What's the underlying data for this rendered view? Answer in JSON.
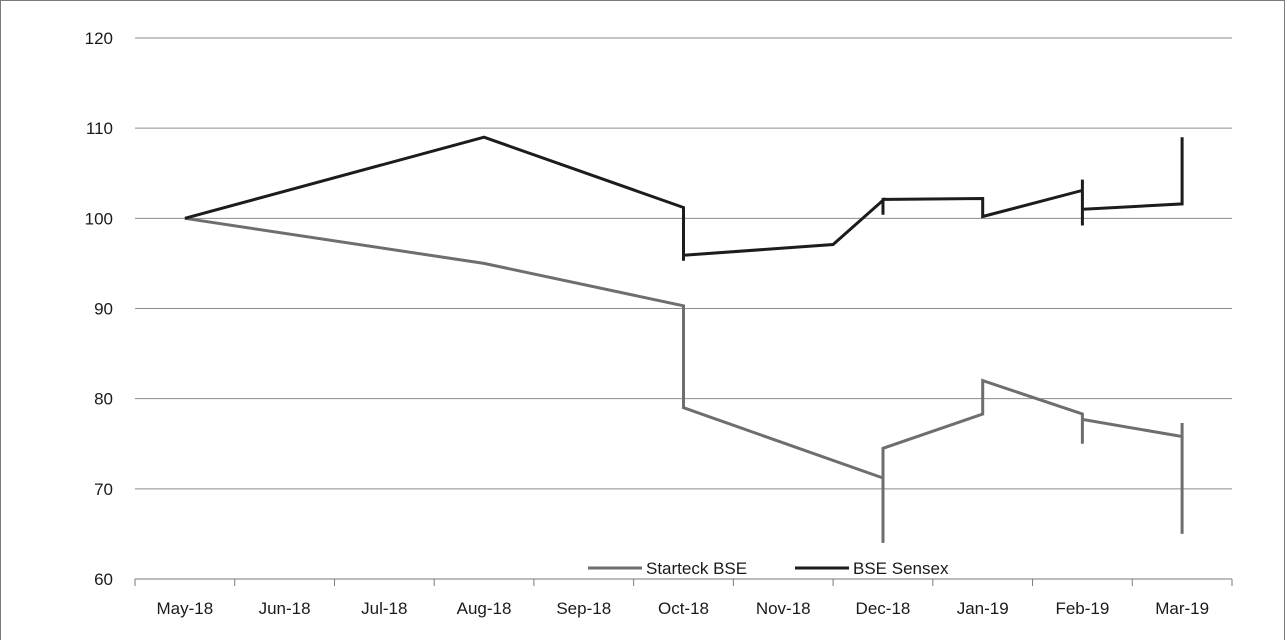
{
  "chart_data": {
    "type": "line",
    "title": "",
    "xlabel": "",
    "ylabel": "",
    "categories": [
      "May-18",
      "Jun-18",
      "Jul-18",
      "Aug-18",
      "Sep-18",
      "Oct-18",
      "Nov-18",
      "Dec-18",
      "Jan-19",
      "Feb-19",
      "Mar-19"
    ],
    "y_ticks": [
      60,
      70,
      80,
      90,
      100,
      110,
      120
    ],
    "ylim": [
      60,
      120
    ],
    "grid": "horizontal",
    "legend_position": "bottom",
    "series": [
      {
        "name": "Starteck BSE",
        "color": "#6e6e6e",
        "points": [
          {
            "x": 0.0,
            "y": 100
          },
          {
            "x": 3.0,
            "y": 95
          },
          {
            "x": 5.0,
            "y": 90.3
          },
          {
            "x": 5.0,
            "y": 79
          },
          {
            "x": 7.0,
            "y": 71.2
          },
          {
            "x": 7.0,
            "y": 64
          },
          {
            "x": 7.0,
            "y": 74.5
          },
          {
            "x": 8.0,
            "y": 78.3
          },
          {
            "x": 8.0,
            "y": 82
          },
          {
            "x": 9.0,
            "y": 78.3
          },
          {
            "x": 9.0,
            "y": 75
          },
          {
            "x": 9.0,
            "y": 77.7
          },
          {
            "x": 10.0,
            "y": 75.8
          },
          {
            "x": 10.0,
            "y": 65
          },
          {
            "x": 10.0,
            "y": 77.3
          }
        ]
      },
      {
        "name": "BSE Sensex",
        "color": "#1c1c1c",
        "points": [
          {
            "x": 0.0,
            "y": 100
          },
          {
            "x": 3.0,
            "y": 109
          },
          {
            "x": 5.0,
            "y": 101.2
          },
          {
            "x": 5.0,
            "y": 95.3
          },
          {
            "x": 5.0,
            "y": 95.9
          },
          {
            "x": 6.5,
            "y": 97.1
          },
          {
            "x": 7.0,
            "y": 102
          },
          {
            "x": 7.0,
            "y": 100.4
          },
          {
            "x": 7.0,
            "y": 102.1
          },
          {
            "x": 8.0,
            "y": 102.2
          },
          {
            "x": 8.0,
            "y": 100.2
          },
          {
            "x": 9.0,
            "y": 103.1
          },
          {
            "x": 9.0,
            "y": 104.3
          },
          {
            "x": 9.0,
            "y": 99.2
          },
          {
            "x": 9.0,
            "y": 101
          },
          {
            "x": 10.0,
            "y": 101.6
          },
          {
            "x": 10.0,
            "y": 109
          }
        ]
      }
    ]
  }
}
